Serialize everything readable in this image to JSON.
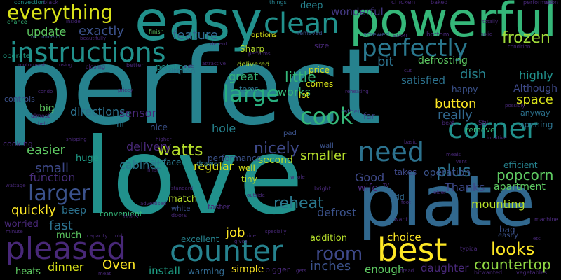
{
  "palette": {
    "background": "#000000",
    "colors": [
      "#440154",
      "#3b528b",
      "#21918c",
      "#5ec962",
      "#fde725",
      "#31688e",
      "#35b779",
      "#90d743",
      "#482878",
      "#26828e"
    ]
  },
  "words": [
    {
      "text": "perfect",
      "color": "#26828e"
    },
    {
      "text": "love",
      "color": "#21918c"
    },
    {
      "text": "plate",
      "color": "#31688e"
    },
    {
      "text": "easy",
      "color": "#21918c"
    },
    {
      "text": "powerful",
      "color": "#35b779"
    },
    {
      "text": "instructions",
      "color": "#21918c"
    },
    {
      "text": "pleased",
      "color": "#482878"
    },
    {
      "text": "counter",
      "color": "#26828e"
    },
    {
      "text": "best",
      "color": "#fde725"
    },
    {
      "text": "clean",
      "color": "#21918c"
    },
    {
      "text": "everything",
      "color": "#d8e219"
    },
    {
      "text": "perfectly",
      "color": "#2a788e"
    },
    {
      "text": "corner",
      "color": "#21918c"
    },
    {
      "text": "need",
      "color": "#2c728e"
    },
    {
      "text": "cook",
      "color": "#35b779"
    },
    {
      "text": "large",
      "color": "#29af7f"
    },
    {
      "text": "larger",
      "color": "#3b528b"
    },
    {
      "text": "watts",
      "color": "#b5de2b"
    },
    {
      "text": "frozen",
      "color": "#a0da39"
    },
    {
      "text": "looks",
      "color": "#fde725"
    },
    {
      "text": "room",
      "color": "#3e4989"
    },
    {
      "text": "update",
      "color": "#5ec962"
    },
    {
      "text": "exactly",
      "color": "#3b528b"
    },
    {
      "text": "feature",
      "color": "#31688e"
    },
    {
      "text": "little",
      "color": "#35b779"
    },
    {
      "text": "plus",
      "color": "#2c728e"
    },
    {
      "text": "popcorn",
      "color": "#5ec962"
    },
    {
      "text": "countertop",
      "color": "#90d743"
    },
    {
      "text": "nicely",
      "color": "#3e4989"
    },
    {
      "text": "smaller",
      "color": "#b5de2b"
    },
    {
      "text": "reheat",
      "color": "#2a788e"
    },
    {
      "text": "inches",
      "color": "#3b528b"
    },
    {
      "text": "quickly",
      "color": "#fde725"
    },
    {
      "text": "fast",
      "color": "#2c728e"
    },
    {
      "text": "job",
      "color": "#fde725"
    },
    {
      "text": "Oven",
      "color": "#fde725"
    },
    {
      "text": "dinner",
      "color": "#d8e219"
    },
    {
      "text": "install",
      "color": "#1fa187"
    },
    {
      "text": "easier",
      "color": "#5ec962"
    },
    {
      "text": "small",
      "color": "#3e4989"
    },
    {
      "text": "function",
      "color": "#472d7b"
    },
    {
      "text": "sensor",
      "color": "#482878"
    },
    {
      "text": "button",
      "color": "#fde725"
    },
    {
      "text": "really",
      "color": "#31688e"
    },
    {
      "text": "space",
      "color": "#d8e219"
    },
    {
      "text": "defrosting",
      "color": "#5ec962"
    },
    {
      "text": "highly",
      "color": "#21918c"
    },
    {
      "text": "dish",
      "color": "#26828e"
    },
    {
      "text": "bit",
      "color": "#2c728e"
    },
    {
      "text": "wonderful",
      "color": "#443983"
    },
    {
      "text": "works",
      "color": "#35b779"
    },
    {
      "text": "satisfied",
      "color": "#2c728e"
    },
    {
      "text": "mounting",
      "color": "#b5de2b"
    },
    {
      "text": "Thanks",
      "color": "#3e4989"
    },
    {
      "text": "apartment",
      "color": "#5ec962"
    },
    {
      "text": "Good",
      "color": "#3e4989"
    },
    {
      "text": "wife",
      "color": "#482878"
    },
    {
      "text": "defrost",
      "color": "#3b528b"
    },
    {
      "text": "operation",
      "color": "#3b528b"
    },
    {
      "text": "daughter",
      "color": "#482878"
    },
    {
      "text": "enough",
      "color": "#5ec962"
    },
    {
      "text": "choice",
      "color": "#fde725"
    },
    {
      "text": "addition",
      "color": "#b5de2b"
    },
    {
      "text": "simple",
      "color": "#fde725"
    },
    {
      "text": "warming",
      "color": "#31688e"
    },
    {
      "text": "heats",
      "color": "#5ec962"
    },
    {
      "text": "worried",
      "color": "#482878"
    },
    {
      "text": "much",
      "color": "#5ec962"
    },
    {
      "text": "beep",
      "color": "#2c728e"
    },
    {
      "text": "directions",
      "color": "#2c728e"
    },
    {
      "text": "delivery",
      "color": "#482878"
    },
    {
      "text": "cabinet",
      "color": "#2a788e"
    },
    {
      "text": "regular",
      "color": "#d8e219"
    },
    {
      "text": "hole",
      "color": "#26828e"
    },
    {
      "text": "great",
      "color": "#35b779"
    },
    {
      "text": "performance",
      "color": "#3b528b"
    },
    {
      "text": "excellent",
      "color": "#26828e"
    },
    {
      "text": "match",
      "color": "#b5de2b"
    },
    {
      "text": "convenient",
      "color": "#35b779"
    },
    {
      "text": "big",
      "color": "#5ec962"
    },
    {
      "text": "huge",
      "color": "#1f9e89"
    },
    {
      "text": "well",
      "color": "#d8e219"
    },
    {
      "text": "tiny",
      "color": "#b5de2b"
    },
    {
      "text": "second",
      "color": "#b5de2b"
    },
    {
      "text": "surface",
      "color": "#2a788e"
    },
    {
      "text": "nice",
      "color": "#3b528b"
    },
    {
      "text": "fit",
      "color": "#2a788e"
    },
    {
      "text": "potatoes",
      "color": "#21918c"
    },
    {
      "text": "kitchen",
      "color": "#2c728e"
    },
    {
      "text": "Sharp",
      "color": "#b5de2b"
    },
    {
      "text": "delivered",
      "color": "#b5de2b"
    },
    {
      "text": "options",
      "color": "#d8e219"
    },
    {
      "text": "items",
      "color": "#2c728e"
    },
    {
      "text": "comes",
      "color": "#d8e219"
    },
    {
      "text": "lot",
      "color": "#d8e219"
    },
    {
      "text": "price",
      "color": "#d8e219"
    },
    {
      "text": "happy",
      "color": "#3b528b"
    },
    {
      "text": "Although",
      "color": "#3e4989"
    },
    {
      "text": "anyway",
      "color": "#2c728e"
    },
    {
      "text": "opening",
      "color": "#2c728e"
    },
    {
      "text": "remove",
      "color": "#35b779"
    },
    {
      "text": "efficient",
      "color": "#26828e"
    },
    {
      "text": "bag",
      "color": "#3b528b"
    },
    {
      "text": "easily",
      "color": "#3b528b"
    },
    {
      "text": "far",
      "color": "#3e4989"
    },
    {
      "text": "rather",
      "color": "#3b528b"
    },
    {
      "text": "deep",
      "color": "#26828e"
    },
    {
      "text": "size",
      "color": "#482878"
    },
    {
      "text": "takes",
      "color": "#3e4989"
    },
    {
      "text": "add",
      "color": "#31688e"
    },
    {
      "text": "faster",
      "color": "#482878"
    },
    {
      "text": "white",
      "color": "#3b528b"
    },
    {
      "text": "drawer",
      "color": "#2c728e"
    },
    {
      "text": "wall",
      "color": "#3b528b"
    },
    {
      "text": "pad",
      "color": "#3b528b"
    },
    {
      "text": "cooking",
      "color": "#482878"
    },
    {
      "text": "controls",
      "color": "#3b528b"
    },
    {
      "text": "operate",
      "color": "#1fa187"
    },
    {
      "text": "convection",
      "color": "#21918c"
    },
    {
      "text": "black",
      "color": "#482878"
    },
    {
      "text": "chance",
      "color": "#35b779"
    },
    {
      "text": "recommend",
      "color": "#3b528b"
    },
    {
      "text": "inside",
      "color": "#482878"
    },
    {
      "text": "beautifully",
      "color": "#482878"
    },
    {
      "text": "things",
      "color": "#26828e"
    },
    {
      "text": "chicken",
      "color": "#482878"
    },
    {
      "text": "baked",
      "color": "#482878"
    },
    {
      "text": "performed",
      "color": "#482878"
    },
    {
      "text": "upon",
      "color": "#482878"
    },
    {
      "text": "totally",
      "color": "#482878"
    },
    {
      "text": "condition",
      "color": "#482878"
    },
    {
      "text": "solid",
      "color": "#482878"
    },
    {
      "text": "screwed",
      "color": "#3b528b"
    },
    {
      "text": "START",
      "color": "#482878"
    },
    {
      "text": "bottom",
      "color": "#482878"
    },
    {
      "text": "finish",
      "color": "#5ec962"
    },
    {
      "text": "removed",
      "color": "#3b528b"
    },
    {
      "text": "decent",
      "color": "#482878"
    },
    {
      "text": "performs",
      "color": "#482878"
    },
    {
      "text": "attractive",
      "color": "#482878"
    },
    {
      "text": "using",
      "color": "#482878"
    },
    {
      "text": "motorused",
      "color": "#482878"
    },
    {
      "text": "closing",
      "color": "#482878"
    },
    {
      "text": "better",
      "color": "#482878"
    },
    {
      "text": "side",
      "color": "#482878"
    },
    {
      "text": "reheating",
      "color": "#482878"
    },
    {
      "text": "cut",
      "color": "#482878"
    },
    {
      "text": "condo",
      "color": "#482878"
    },
    {
      "text": "pricey",
      "color": "#482878"
    },
    {
      "text": "almost",
      "color": "#482878"
    },
    {
      "text": "held",
      "color": "#482878"
    },
    {
      "text": "possibly",
      "color": "#482878"
    },
    {
      "text": "beat",
      "color": "#482878"
    },
    {
      "text": "Still",
      "color": "#482878"
    },
    {
      "text": "intuitive",
      "color": "#482878"
    },
    {
      "text": "meals",
      "color": "#482878"
    },
    {
      "text": "vent",
      "color": "#482878"
    },
    {
      "text": "basic",
      "color": "#482878"
    },
    {
      "text": "shipping",
      "color": "#482878"
    },
    {
      "text": "higher",
      "color": "#482878"
    },
    {
      "text": "final",
      "color": "#482878"
    },
    {
      "text": "standard",
      "color": "#482878"
    },
    {
      "text": "outside",
      "color": "#482878"
    },
    {
      "text": "bright",
      "color": "#482878"
    },
    {
      "text": "whole",
      "color": "#482878"
    },
    {
      "text": "TV",
      "color": "#482878"
    },
    {
      "text": "foot",
      "color": "#482878"
    },
    {
      "text": "older",
      "color": "#482878"
    },
    {
      "text": "want",
      "color": "#482878"
    },
    {
      "text": "wattage",
      "color": "#482878"
    },
    {
      "text": "minute",
      "color": "#482878"
    },
    {
      "text": "capacity",
      "color": "#482878"
    },
    {
      "text": "old",
      "color": "#482878"
    },
    {
      "text": "holds",
      "color": "#482878"
    },
    {
      "text": "advertised",
      "color": "#482878"
    },
    {
      "text": "doors",
      "color": "#482878"
    },
    {
      "text": "gives",
      "color": "#482878"
    },
    {
      "text": "rice",
      "color": "#482878"
    },
    {
      "text": "specially",
      "color": "#482878"
    },
    {
      "text": "bigger",
      "color": "#482878"
    },
    {
      "text": "gets",
      "color": "#482878"
    },
    {
      "text": "bread",
      "color": "#482878"
    },
    {
      "text": "typical",
      "color": "#482878"
    },
    {
      "text": "hitwanted",
      "color": "#482878"
    },
    {
      "text": "vegetables",
      "color": "#482878"
    },
    {
      "text": "machine",
      "color": "#482878"
    },
    {
      "text": "etc",
      "color": "#482878"
    },
    {
      "text": "meat",
      "color": "#482878"
    }
  ]
}
